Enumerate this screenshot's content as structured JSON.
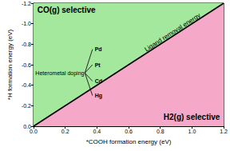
{
  "chart_data": {
    "type": "line",
    "x_label": "*COOH formation energy (eV)",
    "y_label": "*H formation energy (eV)",
    "xlim": [
      0,
      1.2
    ],
    "ylim": [
      -1.2,
      0
    ],
    "xticks": [
      {
        "value": 0,
        "label": "0.0"
      },
      0.2,
      0.4,
      0.6,
      0.8,
      {
        "value": 1,
        "label": "1.0"
      },
      1.2
    ],
    "yticks": [
      -1.2,
      {
        "value": -1,
        "label": "-1.0"
      },
      -0.8,
      -0.6,
      -0.4,
      -0.2,
      {
        "value": 0,
        "label": "0.0"
      }
    ],
    "grid": false,
    "series": [
      {
        "name": "Ligand removal energy",
        "color": "#000000",
        "x": [
          0,
          1.2
        ],
        "values": [
          0,
          -1.2
        ]
      }
    ],
    "regions": [
      {
        "label": "CO(g) selective",
        "color": "#a3e89c"
      },
      {
        "label": "H2(g) selective",
        "color": "#f5a8c8"
      }
    ],
    "annotations": {
      "doping": "Heterometal doping",
      "dopants": [
        "Pd",
        "Pt",
        "Cd",
        "Hg"
      ]
    }
  }
}
